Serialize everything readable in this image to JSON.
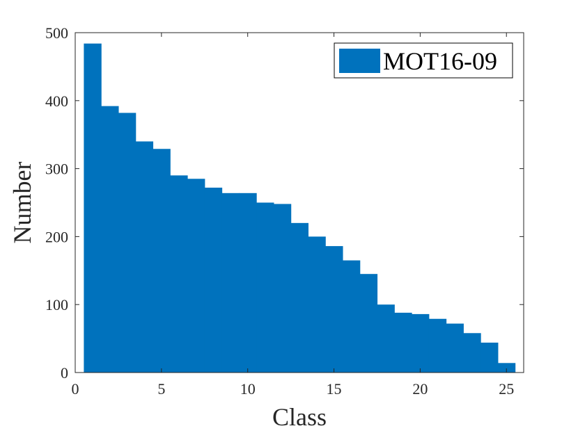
{
  "chart_data": {
    "type": "bar",
    "bar_style": "histogram",
    "xlabel": "Class",
    "ylabel": "Number",
    "xlim": [
      0,
      26
    ],
    "ylim": [
      0,
      500
    ],
    "xticks": [
      0,
      5,
      10,
      15,
      20,
      25
    ],
    "yticks": [
      0,
      100,
      200,
      300,
      400,
      500
    ],
    "grid": false,
    "legend_position": "top-right",
    "categories": [
      1,
      2,
      3,
      4,
      5,
      6,
      7,
      8,
      9,
      10,
      11,
      12,
      13,
      14,
      15,
      16,
      17,
      18,
      19,
      20,
      21,
      22,
      23,
      24,
      25
    ],
    "series": [
      {
        "name": "MOT16-09",
        "color": "#0072bd",
        "values": [
          484,
          392,
          382,
          340,
          329,
          290,
          285,
          272,
          264,
          264,
          250,
          248,
          220,
          200,
          186,
          165,
          145,
          100,
          88,
          86,
          79,
          72,
          58,
          44,
          14
        ]
      }
    ]
  }
}
